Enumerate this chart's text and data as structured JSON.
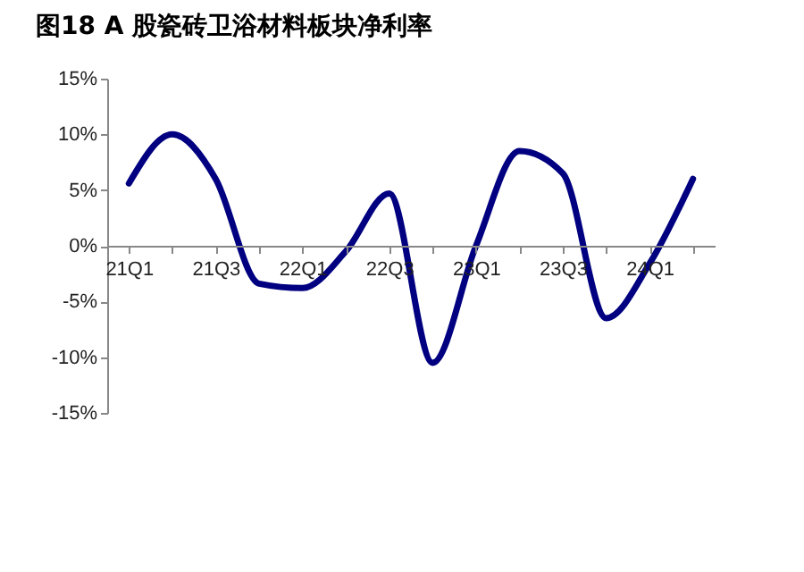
{
  "chart_data": {
    "type": "line",
    "title": "图18 A 股瓷砖卫浴材料板块净利率",
    "categories": [
      "21Q1",
      null,
      "21Q3",
      null,
      "22Q1",
      null,
      "22Q3",
      null,
      "23Q1",
      null,
      "23Q3",
      null,
      "24Q1",
      null
    ],
    "series": [
      {
        "color": "#000080",
        "values": [
          5.6,
          10.0,
          6.0,
          -3.4,
          -3.8,
          -0.5,
          4.7,
          -10.5,
          0.0,
          8.5,
          6.5,
          -6.5,
          -1.6,
          6.0
        ]
      }
    ],
    "ylim": [
      -15,
      15
    ],
    "yticks": [
      {
        "value": -15,
        "label": "-15%"
      },
      {
        "value": -10,
        "label": "-10%"
      },
      {
        "value": -5,
        "label": "-5%"
      },
      {
        "value": 0,
        "label": "0%"
      },
      {
        "value": 5,
        "label": "5%"
      },
      {
        "value": 10,
        "label": "10%"
      },
      {
        "value": 15,
        "label": "15%"
      }
    ],
    "grid": false,
    "marker": "none",
    "line_style": "solid"
  }
}
